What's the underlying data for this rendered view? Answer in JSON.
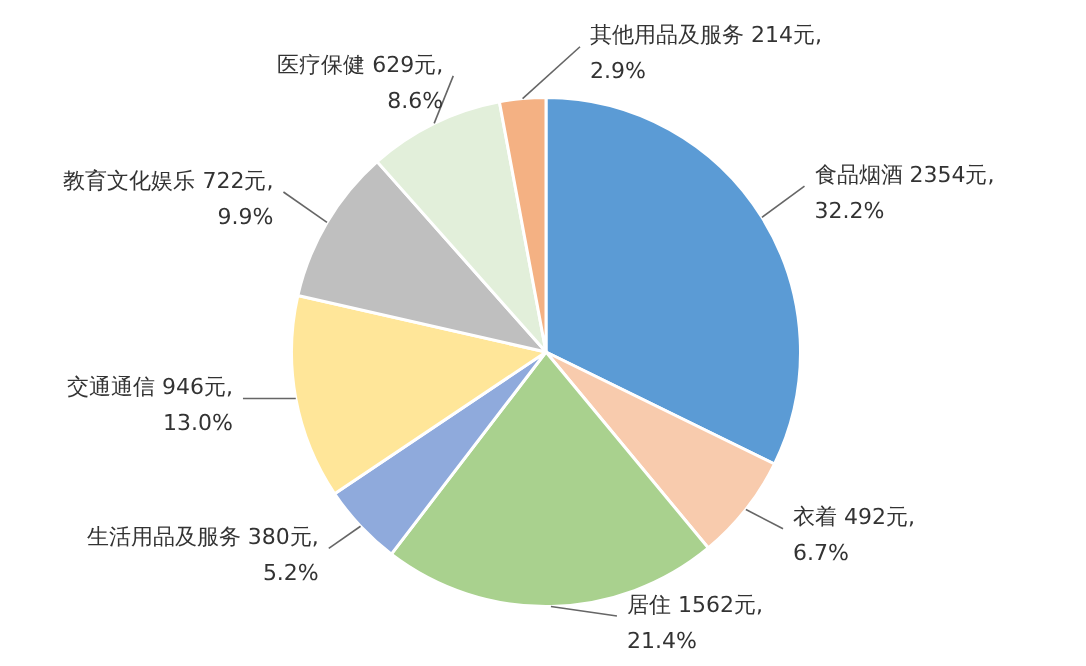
{
  "chart_data": {
    "type": "pie",
    "categories": [
      "食品烟酒",
      "衣着",
      "居住",
      "生活用品及服务",
      "交通通信",
      "教育文化娱乐",
      "医疗保健",
      "其他用品及服务"
    ],
    "values": [
      2354,
      492,
      1562,
      380,
      946,
      722,
      629,
      214
    ],
    "value_labels": [
      "2354元, 32.2%",
      "492元, 6.7%",
      "1562元, 21.4%",
      "380元, 5.2%",
      "946元, 13.0%",
      "722元, 9.9%",
      "629元, 8.6%",
      "214元, 2.9%"
    ],
    "colors": [
      "#5b9bd5",
      "#f8cbad",
      "#a9d18e",
      "#8faadc",
      "#ffe699",
      "#bfbfbf",
      "#e2efda",
      "#f4b183"
    ],
    "legend": false
  }
}
